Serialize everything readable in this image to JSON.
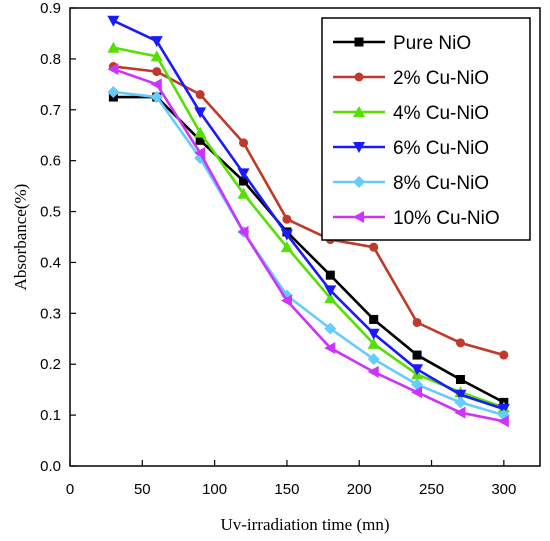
{
  "chart_data": {
    "type": "line",
    "title": "",
    "xlabel": "Uv-irradiation time (mn)",
    "ylabel": "Absorbance(%)",
    "xlim": [
      0,
      325
    ],
    "ylim": [
      0.0,
      0.9
    ],
    "xticks": [
      "0",
      "50",
      "100",
      "150",
      "200",
      "250",
      "300"
    ],
    "yticks": [
      "0.0",
      "0.1",
      "0.2",
      "0.3",
      "0.4",
      "0.5",
      "0.6",
      "0.7",
      "0.8",
      "0.9"
    ],
    "legend_position": "top-right",
    "grid": false,
    "x": [
      30,
      60,
      90,
      120,
      150,
      180,
      210,
      240,
      270,
      300
    ],
    "series": [
      {
        "name": "Pure NiO",
        "color": "#000000",
        "marker": "square",
        "values": [
          0.725,
          0.725,
          0.64,
          0.56,
          0.46,
          0.375,
          0.288,
          0.218,
          0.17,
          0.125
        ]
      },
      {
        "name": "2% Cu-NiO",
        "color": "#c0392b",
        "marker": "circle",
        "values": [
          0.785,
          0.775,
          0.73,
          0.635,
          0.485,
          0.445,
          0.43,
          0.282,
          0.242,
          0.218
        ]
      },
      {
        "name": "4% Cu-NiO",
        "color": "#55e000",
        "marker": "triangle-up",
        "values": [
          0.822,
          0.805,
          0.655,
          0.535,
          0.43,
          0.33,
          0.24,
          0.18,
          0.145,
          0.115
        ]
      },
      {
        "name": "6% Cu-NiO",
        "color": "#1a1aff",
        "marker": "triangle-down",
        "values": [
          0.875,
          0.835,
          0.695,
          0.575,
          0.455,
          0.345,
          0.26,
          0.19,
          0.14,
          0.112
        ]
      },
      {
        "name": "8% Cu-NiO",
        "color": "#66ccff",
        "marker": "diamond",
        "values": [
          0.735,
          0.725,
          0.605,
          0.46,
          0.335,
          0.27,
          0.21,
          0.16,
          0.125,
          0.1
        ]
      },
      {
        "name": "10% Cu-NiO",
        "color": "#cc33ff",
        "marker": "triangle-left",
        "values": [
          0.78,
          0.75,
          0.615,
          0.46,
          0.325,
          0.232,
          0.185,
          0.145,
          0.105,
          0.088
        ]
      }
    ]
  }
}
